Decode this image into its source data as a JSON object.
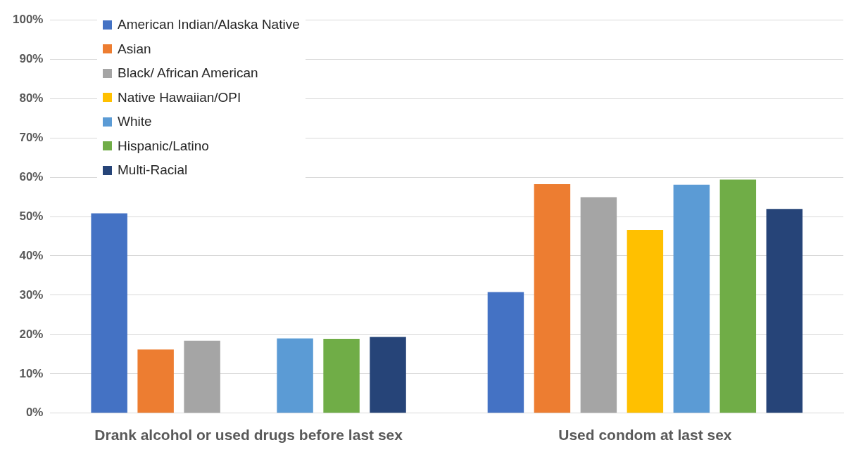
{
  "chart_data": {
    "type": "bar",
    "categories": [
      "Drank alcohol or used drugs before last sex",
      "Used condom at last sex"
    ],
    "series": [
      {
        "name": "American Indian/Alaska Native",
        "color": "#4472c4",
        "values": [
          50.8,
          30.8
        ]
      },
      {
        "name": "Asian",
        "color": "#ed7d31",
        "values": [
          16.2,
          58.2
        ]
      },
      {
        "name": "Black/ African American",
        "color": "#a5a5a5",
        "values": [
          18.4,
          54.9
        ]
      },
      {
        "name": "Native Hawaiian/OPI",
        "color": "#ffc000",
        "values": [
          null,
          46.6
        ]
      },
      {
        "name": "White",
        "color": "#5b9bd5",
        "values": [
          19.0,
          58.1
        ]
      },
      {
        "name": "Hispanic/Latino",
        "color": "#70ad47",
        "values": [
          18.9,
          59.4
        ]
      },
      {
        "name": "Multi-Racial",
        "color": "#264478",
        "values": [
          19.4,
          51.9
        ]
      }
    ],
    "ylim": [
      0,
      100
    ],
    "yticks": [
      {
        "value": 0,
        "label": "0%"
      },
      {
        "value": 10,
        "label": "10%"
      },
      {
        "value": 20,
        "label": "20%"
      },
      {
        "value": 30,
        "label": "30%"
      },
      {
        "value": 40,
        "label": "40%"
      },
      {
        "value": 50,
        "label": "50%"
      },
      {
        "value": 60,
        "label": "60%"
      },
      {
        "value": 70,
        "label": "70%"
      },
      {
        "value": 80,
        "label": "80%"
      },
      {
        "value": 90,
        "label": "90%"
      },
      {
        "value": 100,
        "label": "100%"
      }
    ],
    "grid": "y",
    "legend": "top left"
  }
}
